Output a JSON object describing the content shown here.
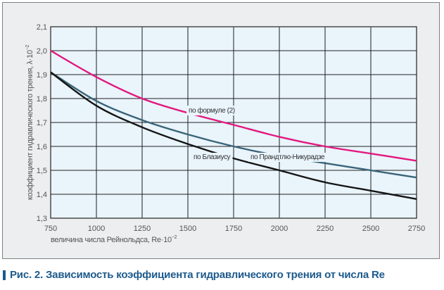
{
  "chart_data": {
    "type": "line",
    "title": "",
    "xlabel": "величина числа Рейнольдса, Re·10",
    "xlabel_sup": "−2",
    "ylabel": "коэффициент гидравлического трения, λ·10",
    "ylabel_sup": "−2",
    "xlim": [
      750,
      2750
    ],
    "ylim": [
      1.3,
      2.1
    ],
    "grid": true,
    "x_ticks": [
      "750",
      "1000",
      "1250",
      "1500",
      "1750",
      "2000",
      "2250",
      "2500",
      "2750"
    ],
    "y_ticks": [
      "1,3",
      "1,4",
      "1,5",
      "1,6",
      "1,7",
      "1,8",
      "1,9",
      "2,0",
      "2,1"
    ],
    "x": [
      750,
      1000,
      1250,
      1500,
      1750,
      2000,
      2250,
      2500,
      2750
    ],
    "series": [
      {
        "name": "по формуле (2)",
        "color": "#e2187f",
        "values": [
          2.0,
          1.89,
          1.8,
          1.74,
          1.69,
          1.64,
          1.6,
          1.57,
          1.54
        ]
      },
      {
        "name": "по Прандтлю-Никурадзе",
        "color": "#3a6478",
        "values": [
          1.91,
          1.79,
          1.71,
          1.65,
          1.6,
          1.56,
          1.53,
          1.5,
          1.47
        ]
      },
      {
        "name": "по Блазиусу",
        "color": "#141414",
        "values": [
          1.91,
          1.77,
          1.68,
          1.61,
          1.55,
          1.5,
          1.45,
          1.415,
          1.38
        ]
      }
    ]
  },
  "caption": "Рис. 2. Зависимость коэффициента гидравлического трения от числа Re"
}
